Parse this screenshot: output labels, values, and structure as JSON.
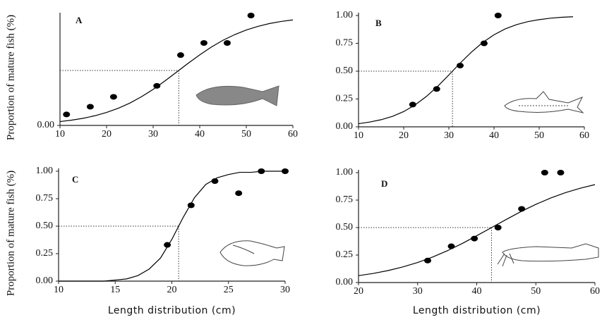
{
  "chart_data": [
    {
      "type": "scatter",
      "label": "A",
      "y_label": "Proportion of mature fish (%)",
      "color": "#000000",
      "xlim": [
        10,
        60
      ],
      "ylim": [
        0,
        1
      ],
      "xticks": [
        10,
        20,
        30,
        40,
        50,
        60
      ],
      "yticks": [
        {
          "value": 0,
          "label": "0.00"
        }
      ],
      "points": {
        "x": [
          11.4,
          16.5,
          21.5,
          30.8,
          35.9,
          40.9,
          45.9,
          51
        ],
        "y": [
          0.1,
          0.17,
          0.26,
          0.36,
          0.64,
          0.75,
          0.75,
          1.0
        ]
      },
      "fit": {
        "x": [
          10,
          12.5,
          15,
          17.5,
          20,
          22.5,
          25,
          27.5,
          30,
          32.5,
          35,
          37.5,
          40,
          42.5,
          45,
          47.5,
          50,
          52.5,
          55,
          57.5,
          60
        ],
        "y": [
          0.035,
          0.048,
          0.065,
          0.088,
          0.118,
          0.156,
          0.203,
          0.261,
          0.328,
          0.404,
          0.484,
          0.565,
          0.642,
          0.713,
          0.775,
          0.826,
          0.868,
          0.901,
          0.927,
          0.946,
          0.96
        ]
      },
      "l50": {
        "x": 35.5,
        "y": 0.5
      }
    },
    {
      "type": "scatter",
      "label": "B",
      "color": "#000000",
      "xlim": [
        10,
        60
      ],
      "ylim": [
        0,
        1
      ],
      "xticks": [
        10,
        20,
        30,
        40,
        50,
        60
      ],
      "yticks": [
        {
          "value": 0,
          "label": "0.00"
        },
        {
          "value": 0.25,
          "label": "0.25"
        },
        {
          "value": 0.5,
          "label": "0.50"
        },
        {
          "value": 0.75,
          "label": "0.75"
        },
        {
          "value": 1,
          "label": "1.00"
        }
      ],
      "points": {
        "x": [
          22,
          27.3,
          32.5,
          37.8,
          40.9
        ],
        "y": [
          0.2,
          0.34,
          0.55,
          0.75,
          1.0
        ]
      },
      "fit": {
        "x": [
          10,
          12.5,
          15,
          17.5,
          20,
          22.5,
          25,
          27.5,
          30,
          32.5,
          35,
          37.5,
          40,
          42.5,
          45,
          47.5,
          50,
          52.5,
          55,
          57.5
        ],
        "y": [
          0.028,
          0.043,
          0.064,
          0.094,
          0.137,
          0.196,
          0.272,
          0.363,
          0.466,
          0.572,
          0.671,
          0.758,
          0.827,
          0.88,
          0.918,
          0.945,
          0.963,
          0.976,
          0.984,
          0.989
        ]
      },
      "l50": {
        "x": 30.8,
        "y": 0.5
      }
    },
    {
      "type": "scatter",
      "label": "C",
      "y_label": "Proportion of mature fish (%)",
      "x_label": "Length distribution (cm)",
      "color": "#000000",
      "xlim": [
        10,
        30
      ],
      "ylim": [
        0,
        1
      ],
      "xticks": [
        10,
        15,
        20,
        25,
        30
      ],
      "yticks": [
        {
          "value": 0,
          "label": "0.00"
        },
        {
          "value": 0.25,
          "label": "0.25"
        },
        {
          "value": 0.5,
          "label": "0.50"
        },
        {
          "value": 0.75,
          "label": "0.75"
        },
        {
          "value": 1,
          "label": "1.00"
        }
      ],
      "points": {
        "x": [
          19.6,
          21.7,
          23.8,
          25.9,
          27.9,
          30
        ],
        "y": [
          0.33,
          0.69,
          0.91,
          0.8,
          1.0,
          1.0
        ]
      },
      "fit": {
        "x": [
          10,
          11,
          12,
          13,
          14,
          15,
          16,
          17,
          18,
          19,
          20,
          21,
          22,
          23,
          24,
          25,
          26,
          27,
          28,
          29,
          30
        ],
        "y": [
          0,
          0,
          0,
          0,
          0,
          0.01,
          0.02,
          0.05,
          0.11,
          0.21,
          0.38,
          0.58,
          0.76,
          0.88,
          0.94,
          0.97,
          0.99,
          0.99,
          1,
          1,
          1
        ]
      },
      "l50": {
        "x": 20.6,
        "y": 0.5
      }
    },
    {
      "type": "scatter",
      "label": "D",
      "x_label": "Length distribution (cm)",
      "color": "#000000",
      "xlim": [
        20,
        60
      ],
      "ylim": [
        0,
        1
      ],
      "xticks": [
        20,
        30,
        40,
        50,
        60
      ],
      "yticks": [
        {
          "value": 0,
          "label": "0.00"
        },
        {
          "value": 0.25,
          "label": "0.25"
        },
        {
          "value": 0.5,
          "label": "0.50"
        },
        {
          "value": 0.75,
          "label": "0.75"
        },
        {
          "value": 1,
          "label": "1.00"
        }
      ],
      "points": {
        "x": [
          31.7,
          35.7,
          39.6,
          43.6,
          47.6,
          51.5,
          54.2
        ],
        "y": [
          0.2,
          0.33,
          0.4,
          0.5,
          0.67,
          1.0,
          1.0
        ]
      },
      "fit": {
        "x": [
          20,
          22.5,
          25,
          27.5,
          30,
          32.5,
          35,
          37.5,
          40,
          42.5,
          45,
          47.5,
          50,
          52.5,
          55,
          57.5,
          60
        ],
        "y": [
          0.063,
          0.083,
          0.109,
          0.142,
          0.182,
          0.231,
          0.289,
          0.354,
          0.426,
          0.5,
          0.574,
          0.646,
          0.711,
          0.769,
          0.818,
          0.858,
          0.891
        ]
      },
      "l50": {
        "x": 42.5,
        "y": 0.5
      }
    }
  ]
}
